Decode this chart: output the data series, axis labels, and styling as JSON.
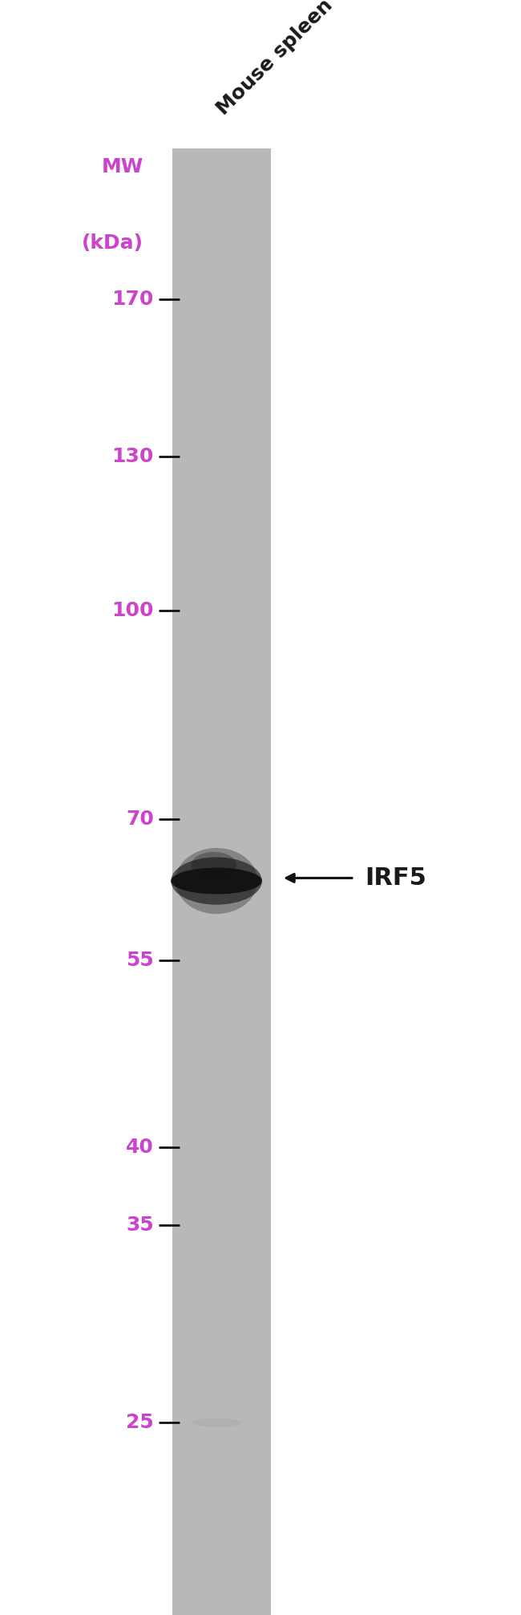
{
  "figure_width": 6.5,
  "figure_height": 20.13,
  "dpi": 100,
  "background_color": "#ffffff",
  "lane_label": "Mouse spleen",
  "lane_label_rotation": 45,
  "lane_label_fontsize": 18,
  "lane_label_color": "#1a1a1a",
  "mw_label_line1": "MW",
  "mw_label_line2": "(kDa)",
  "mw_label_color": "#cc44cc",
  "mw_label_fontsize": 18,
  "marker_color_text": "#cc44cc",
  "marker_ticks": [
    170,
    130,
    100,
    70,
    55,
    40,
    35,
    25
  ],
  "marker_fontsize": 18,
  "gel_color": "#b8b8b8",
  "band_kda": 63,
  "band_label": "IRF5",
  "band_label_color": "#1a1a1a",
  "band_label_fontsize": 22,
  "band_color": "#111111",
  "faint_band_kda": 25,
  "faint_band_color": "#aaaaaa",
  "y_min": 18,
  "y_max": 220,
  "tick_line_color": "#111111",
  "arrow_color": "#111111"
}
